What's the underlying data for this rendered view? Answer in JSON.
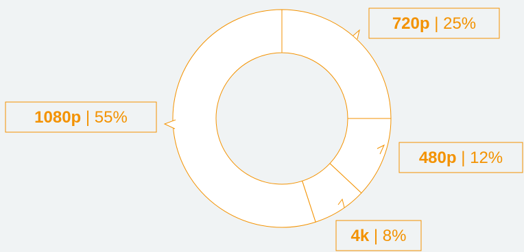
{
  "colors": {
    "accent": "#f39200",
    "ring_fill": "#ffffff",
    "background": "#f0f3f4"
  },
  "chart_data": {
    "type": "donut",
    "title": "",
    "legend": "none",
    "slices": [
      {
        "label": "720p",
        "value": 25,
        "value_label": "25%"
      },
      {
        "label": "480p",
        "value": 12,
        "value_label": "12%"
      },
      {
        "label": "4k",
        "value": 8,
        "value_label": "8%"
      },
      {
        "label": "1080p",
        "value": 55,
        "value_label": "55%"
      }
    ],
    "separator": "|"
  }
}
